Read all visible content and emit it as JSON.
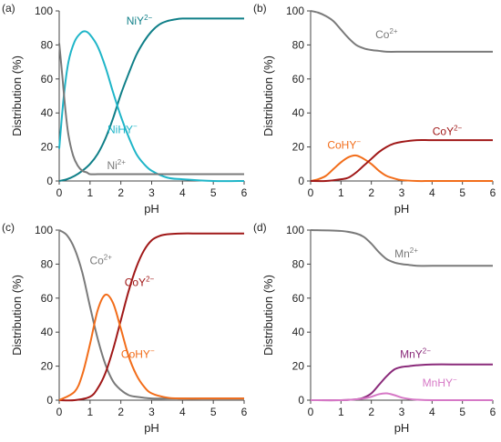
{
  "chart_data": [
    {
      "panel_label": "(a)",
      "type": "line",
      "xlabel": "pH",
      "ylabel": "Distribution (%)",
      "xlim": [
        0,
        6
      ],
      "ylim": [
        0,
        100
      ],
      "xticks": [
        "0",
        "1",
        "2",
        "3",
        "4",
        "5",
        "6"
      ],
      "yticks": [
        "0",
        "20",
        "40",
        "60",
        "80",
        "100"
      ],
      "series": [
        {
          "name": "NiY",
          "charge": "2−",
          "color": "#0f7f88",
          "x": [
            0,
            0.25,
            0.5,
            0.75,
            1.0,
            1.25,
            1.5,
            1.75,
            2.0,
            2.25,
            2.5,
            2.75,
            3.0,
            3.25,
            3.5,
            3.75,
            4.0,
            4.5,
            5.0,
            5.5,
            6.0
          ],
          "y": [
            0,
            1,
            3,
            6,
            10,
            16,
            25,
            37,
            51,
            63,
            74,
            82,
            88,
            92,
            94,
            95,
            95.5,
            95.5,
            95.5,
            95.5,
            95.5
          ]
        },
        {
          "name": "NiHY",
          "charge": "−",
          "color": "#1fb5c8",
          "x": [
            0,
            0.15,
            0.3,
            0.5,
            0.7,
            0.85,
            1.0,
            1.25,
            1.5,
            1.75,
            2.0,
            2.25,
            2.5,
            2.75,
            3.0,
            3.5,
            4.0,
            5.0,
            6.0
          ],
          "y": [
            19,
            50,
            70,
            82,
            87,
            88,
            86,
            79,
            67,
            52,
            38,
            26,
            16,
            10,
            6,
            2,
            1,
            0,
            0
          ]
        },
        {
          "name": "Ni",
          "charge": "2+",
          "color": "#7a7a7a",
          "x": [
            0,
            0.1,
            0.2,
            0.3,
            0.45,
            0.6,
            0.75,
            0.9,
            1.0,
            1.25,
            1.5,
            2.0,
            3.0,
            4.0,
            5.0,
            6.0
          ],
          "y": [
            81,
            62,
            42,
            27,
            15,
            9,
            6,
            5,
            4,
            4,
            4,
            4,
            4,
            4,
            4,
            4
          ]
        }
      ]
    },
    {
      "panel_label": "(b)",
      "type": "line",
      "xlabel": "pH",
      "ylabel": "Distribution (%)",
      "xlim": [
        0,
        6
      ],
      "ylim": [
        0,
        100
      ],
      "xticks": [
        "0",
        "1",
        "2",
        "3",
        "4",
        "5",
        "6"
      ],
      "yticks": [
        "0",
        "20",
        "40",
        "60",
        "80",
        "100"
      ],
      "series": [
        {
          "name": "Co",
          "charge": "2+",
          "color": "#7a7a7a",
          "x": [
            0,
            0.25,
            0.5,
            0.75,
            1.0,
            1.25,
            1.5,
            1.75,
            2.0,
            2.25,
            2.5,
            3.0,
            3.5,
            4.0,
            5.0,
            6.0
          ],
          "y": [
            100,
            99,
            97,
            94,
            89,
            84,
            80,
            78,
            77,
            76.5,
            76,
            76,
            76,
            76,
            76,
            76
          ]
        },
        {
          "name": "CoHY",
          "charge": "−",
          "color": "#f26d1a",
          "x": [
            0,
            0.25,
            0.5,
            0.75,
            1.0,
            1.25,
            1.5,
            1.75,
            2.0,
            2.25,
            2.5,
            2.75,
            3.0,
            3.5,
            4.0,
            5.0,
            6.0
          ],
          "y": [
            0,
            1,
            3,
            7,
            11,
            14,
            15,
            13,
            10,
            6,
            3,
            1.5,
            0.5,
            0,
            0,
            0,
            0
          ]
        },
        {
          "name": "CoY",
          "charge": "2−",
          "color": "#a01818",
          "x": [
            0,
            0.5,
            1.0,
            1.25,
            1.5,
            1.75,
            2.0,
            2.25,
            2.5,
            2.75,
            3.0,
            3.5,
            4.0,
            5.0,
            6.0
          ],
          "y": [
            0,
            0,
            1,
            2,
            5,
            9,
            13,
            17,
            20,
            22,
            23,
            24,
            24,
            24,
            24
          ]
        }
      ]
    },
    {
      "panel_label": "(c)",
      "type": "line",
      "xlabel": "pH",
      "ylabel": "Distribution (%)",
      "xlim": [
        0,
        6
      ],
      "ylim": [
        0,
        100
      ],
      "xticks": [
        "0",
        "1",
        "2",
        "3",
        "4",
        "5",
        "6"
      ],
      "yticks": [
        "0",
        "20",
        "40",
        "60",
        "80",
        "100"
      ],
      "series": [
        {
          "name": "Co",
          "charge": "2+",
          "color": "#7a7a7a",
          "x": [
            0,
            0.25,
            0.5,
            0.75,
            1.0,
            1.25,
            1.5,
            1.75,
            2.0,
            2.25,
            2.5,
            3.0,
            3.5,
            4.0,
            5.0,
            6.0
          ],
          "y": [
            100,
            97,
            89,
            75,
            55,
            36,
            21,
            11,
            6,
            3,
            2,
            1,
            1,
            1,
            1,
            1
          ]
        },
        {
          "name": "CoY",
          "charge": "2−",
          "color": "#a01818",
          "x": [
            0,
            0.5,
            1.0,
            1.25,
            1.5,
            1.75,
            2.0,
            2.25,
            2.5,
            2.75,
            3.0,
            3.25,
            3.5,
            4.0,
            4.5,
            5.0,
            6.0
          ],
          "y": [
            0,
            0,
            2,
            7,
            16,
            30,
            47,
            64,
            78,
            88,
            94,
            96.5,
            97.5,
            98,
            98,
            98,
            98
          ]
        },
        {
          "name": "CoHY",
          "charge": "−",
          "color": "#f26d1a",
          "x": [
            0,
            0.5,
            0.75,
            1.0,
            1.25,
            1.5,
            1.75,
            2.0,
            2.25,
            2.5,
            2.75,
            3.0,
            3.5,
            4.0,
            5.0,
            6.0
          ],
          "y": [
            0,
            5,
            15,
            33,
            53,
            62,
            57,
            42,
            26,
            15,
            8,
            4,
            1.5,
            1,
            1,
            1
          ]
        }
      ]
    },
    {
      "panel_label": "(d)",
      "type": "line",
      "xlabel": "pH",
      "ylabel": "Distribution (%)",
      "xlim": [
        0,
        6
      ],
      "ylim": [
        0,
        100
      ],
      "xticks": [
        "0",
        "1",
        "2",
        "3",
        "4",
        "5",
        "6"
      ],
      "yticks": [
        "0",
        "20",
        "40",
        "60",
        "80",
        "100"
      ],
      "series": [
        {
          "name": "Mn",
          "charge": "2+",
          "color": "#7a7a7a",
          "x": [
            0,
            1.0,
            1.5,
            1.75,
            2.0,
            2.25,
            2.5,
            2.75,
            3.0,
            3.25,
            3.5,
            4.0,
            5.0,
            6.0
          ],
          "y": [
            100,
            99.5,
            98,
            96,
            92,
            87,
            83,
            81,
            80,
            79.5,
            79,
            79,
            79,
            79
          ]
        },
        {
          "name": "MnY",
          "charge": "2−",
          "color": "#8a2a7a",
          "x": [
            0,
            1.0,
            1.5,
            1.75,
            2.0,
            2.25,
            2.5,
            2.75,
            3.0,
            3.25,
            3.5,
            4.0,
            5.0,
            6.0
          ],
          "y": [
            0,
            0,
            0.5,
            1.5,
            4,
            9,
            14,
            18,
            19.5,
            20,
            20.5,
            21,
            21,
            21
          ]
        },
        {
          "name": "MnHY",
          "charge": "−",
          "color": "#d678c6",
          "x": [
            0,
            1.0,
            1.5,
            1.75,
            2.0,
            2.25,
            2.5,
            2.75,
            3.0,
            3.25,
            3.5,
            4.0,
            5.0,
            6.0
          ],
          "y": [
            0,
            0,
            0.5,
            1,
            2,
            3.5,
            4,
            3,
            1.5,
            0.7,
            0.3,
            0,
            0,
            0
          ]
        }
      ]
    }
  ]
}
